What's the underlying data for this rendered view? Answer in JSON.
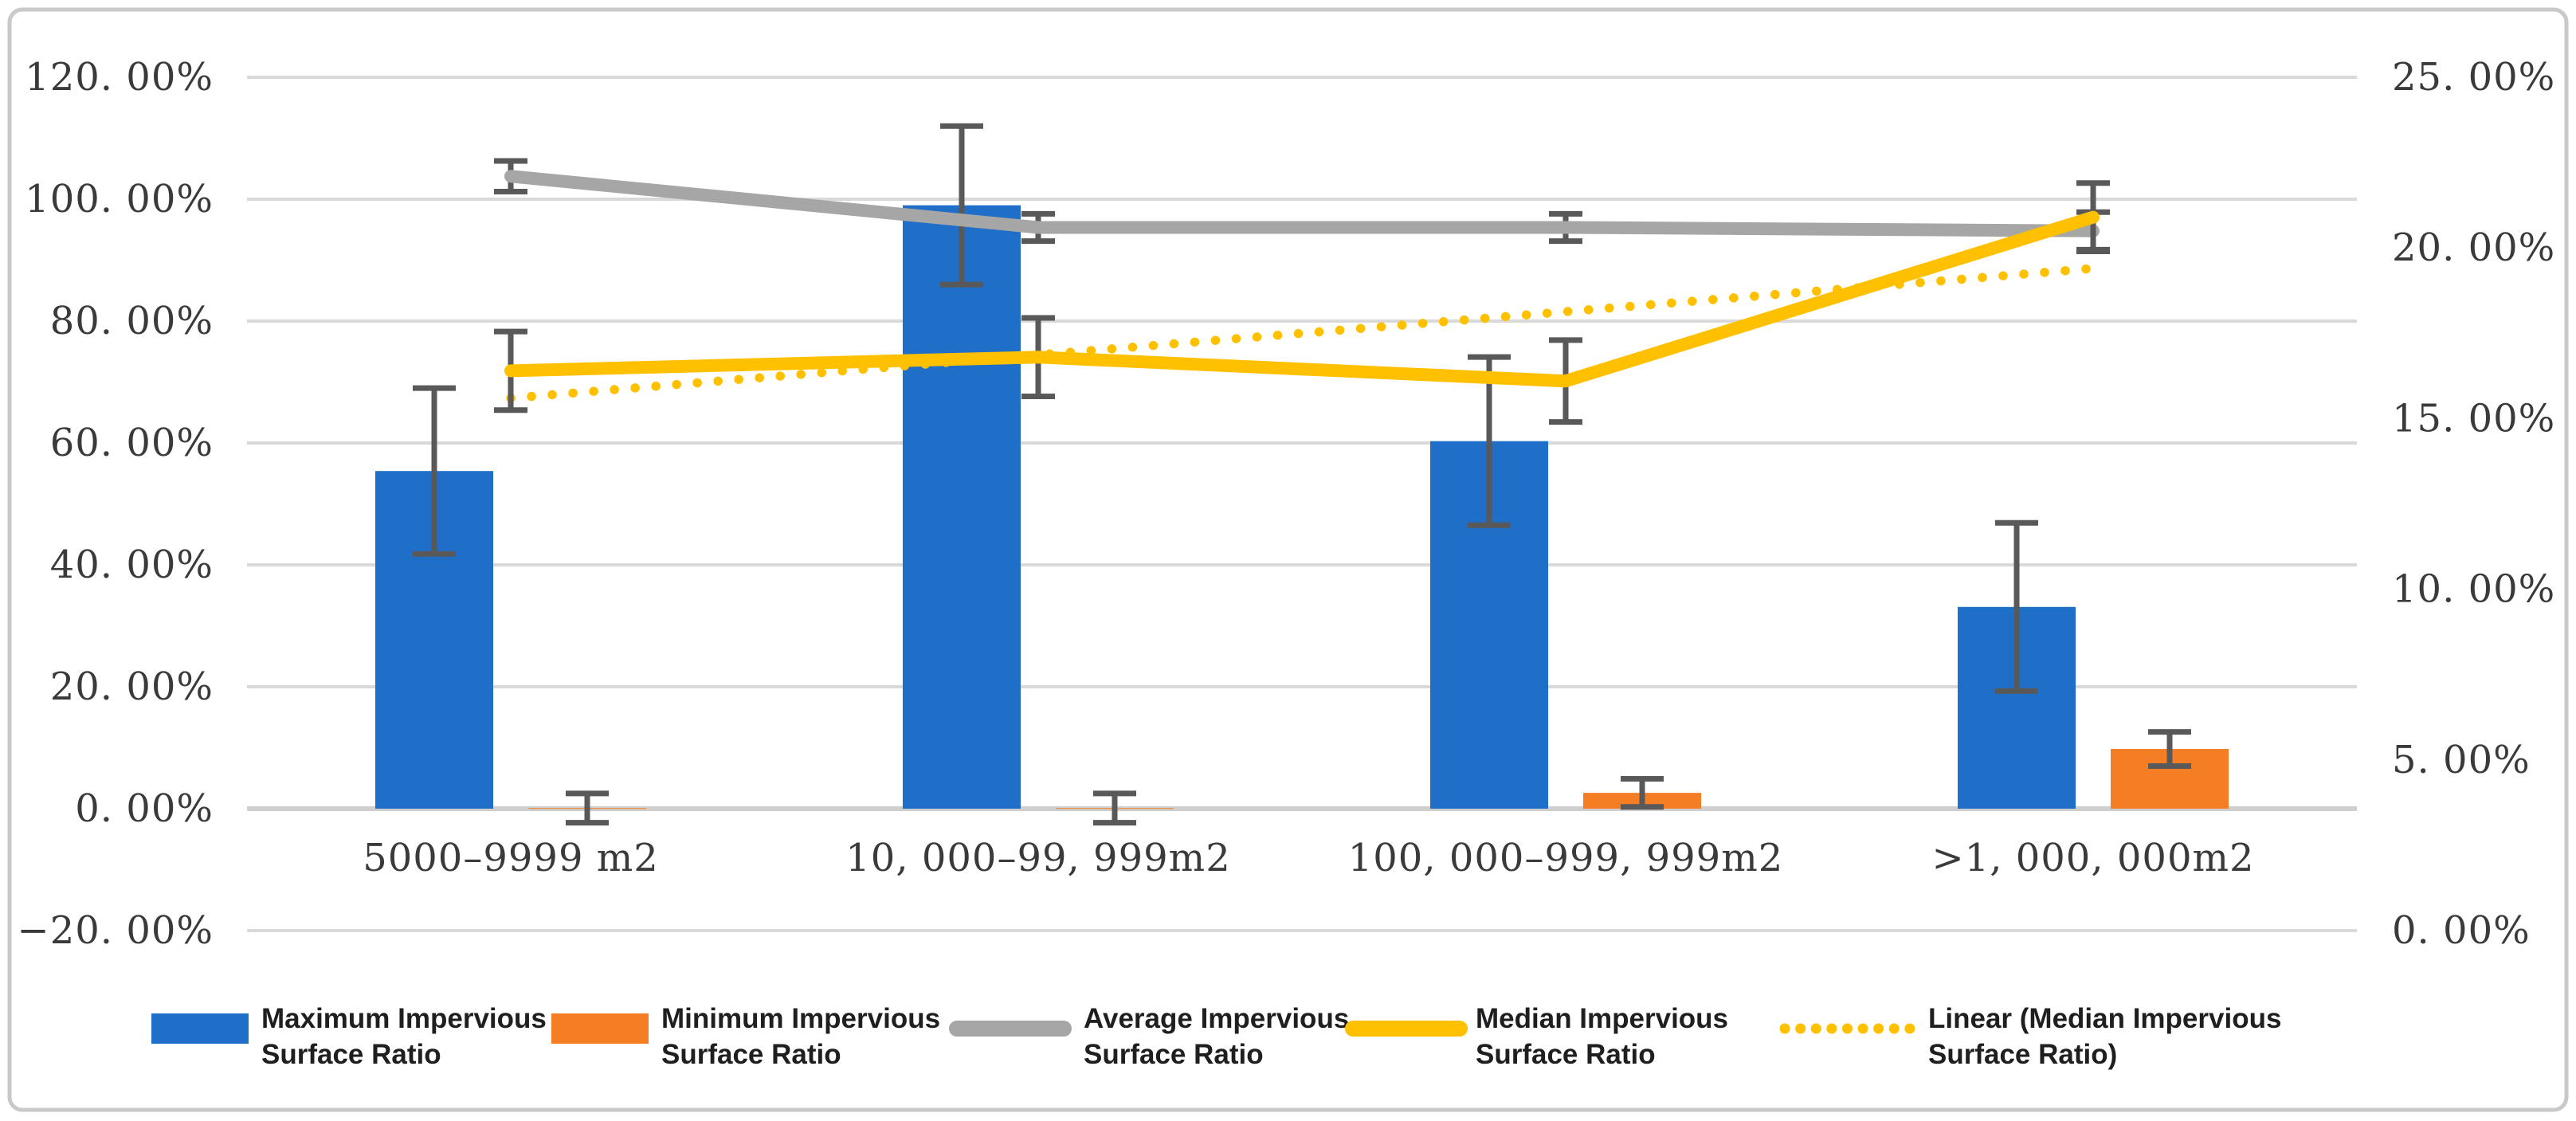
{
  "figure": {
    "background": "#ffffff",
    "border_color": "#c9c9c9"
  },
  "chart_data": {
    "type": "combo-bar-line",
    "title": "",
    "categories": [
      "5000–9999 m2",
      "10, 000–99, 999m2",
      "100, 000–999, 999m2",
      ">1, 000, 000m2"
    ],
    "left_axis": {
      "min": -20,
      "max": 120,
      "step": 20,
      "ticks": [
        {
          "label": "120. 00%",
          "value": 120
        },
        {
          "label": "100. 00%",
          "value": 100
        },
        {
          "label": "80. 00%",
          "value": 80
        },
        {
          "label": "60. 00%",
          "value": 60
        },
        {
          "label": "40. 00%",
          "value": 40
        },
        {
          "label": "20. 00%",
          "value": 20
        },
        {
          "label": "0. 00%",
          "value": 0
        },
        {
          "label": "−20. 00%",
          "value": -20
        }
      ]
    },
    "right_axis": {
      "min": 0,
      "max": 25,
      "step": 5,
      "ticks": [
        {
          "label": "25. 00%",
          "value": 25
        },
        {
          "label": "20. 00%",
          "value": 20
        },
        {
          "label": "15. 00%",
          "value": 15
        },
        {
          "label": "10. 00%",
          "value": 10
        },
        {
          "label": "5. 00%",
          "value": 5
        },
        {
          "label": "0. 00%",
          "value": 0
        }
      ]
    },
    "grid": true,
    "gridline_color": "#d9d9d9",
    "zero_line_color": "#cfcfcf",
    "error_bar_color": "#595959",
    "tick_text_color": "#3a3a3a",
    "legend_text_color": "#1f1f1f",
    "legend_position": "bottom",
    "series": [
      {
        "name": "Maximum Impervious Surface Ratio",
        "legend_lines": [
          "Maximum Impervious",
          "Surface Ratio"
        ],
        "type": "bar",
        "axis": "left",
        "color": "#1f6ec7",
        "values": [
          55.4,
          99.0,
          60.3,
          33.1
        ],
        "errors": [
          13.6,
          13.0,
          13.8,
          13.8
        ]
      },
      {
        "name": "Minimum Impervious Surface Ratio",
        "legend_lines": [
          "Minimum Impervious",
          "Surface Ratio"
        ],
        "type": "bar",
        "axis": "left",
        "color": "#f57e25",
        "values": [
          0.1,
          0.1,
          2.6,
          9.8
        ],
        "errors": [
          2.4,
          2.4,
          2.3,
          2.8
        ]
      },
      {
        "name": "Average Impervious Surface Ratio",
        "legend_lines": [
          "Average Impervious",
          "Surface Ratio"
        ],
        "type": "line",
        "axis": "right",
        "color": "#a6a6a6",
        "values": [
          22.1,
          20.6,
          20.6,
          20.5
        ],
        "errors": [
          0.45,
          0.4,
          0.4,
          0.55
        ]
      },
      {
        "name": "Median Impervious Surface Ratio",
        "legend_lines": [
          "Median Impervious",
          "Surface Ratio"
        ],
        "type": "line",
        "axis": "right",
        "color": "#ffc000",
        "values": [
          16.4,
          16.8,
          16.1,
          20.9
        ],
        "errors": [
          1.15,
          1.15,
          1.2,
          1.0
        ]
      },
      {
        "name": "Linear (Median Impervious Surface Ratio)",
        "legend_lines": [
          "Linear (Median Impervious",
          "Surface Ratio)"
        ],
        "type": "trendline",
        "axis": "right",
        "style": "dotted",
        "color": "#ffc000",
        "values": [
          15.6,
          16.87,
          18.13,
          19.4
        ]
      }
    ]
  }
}
